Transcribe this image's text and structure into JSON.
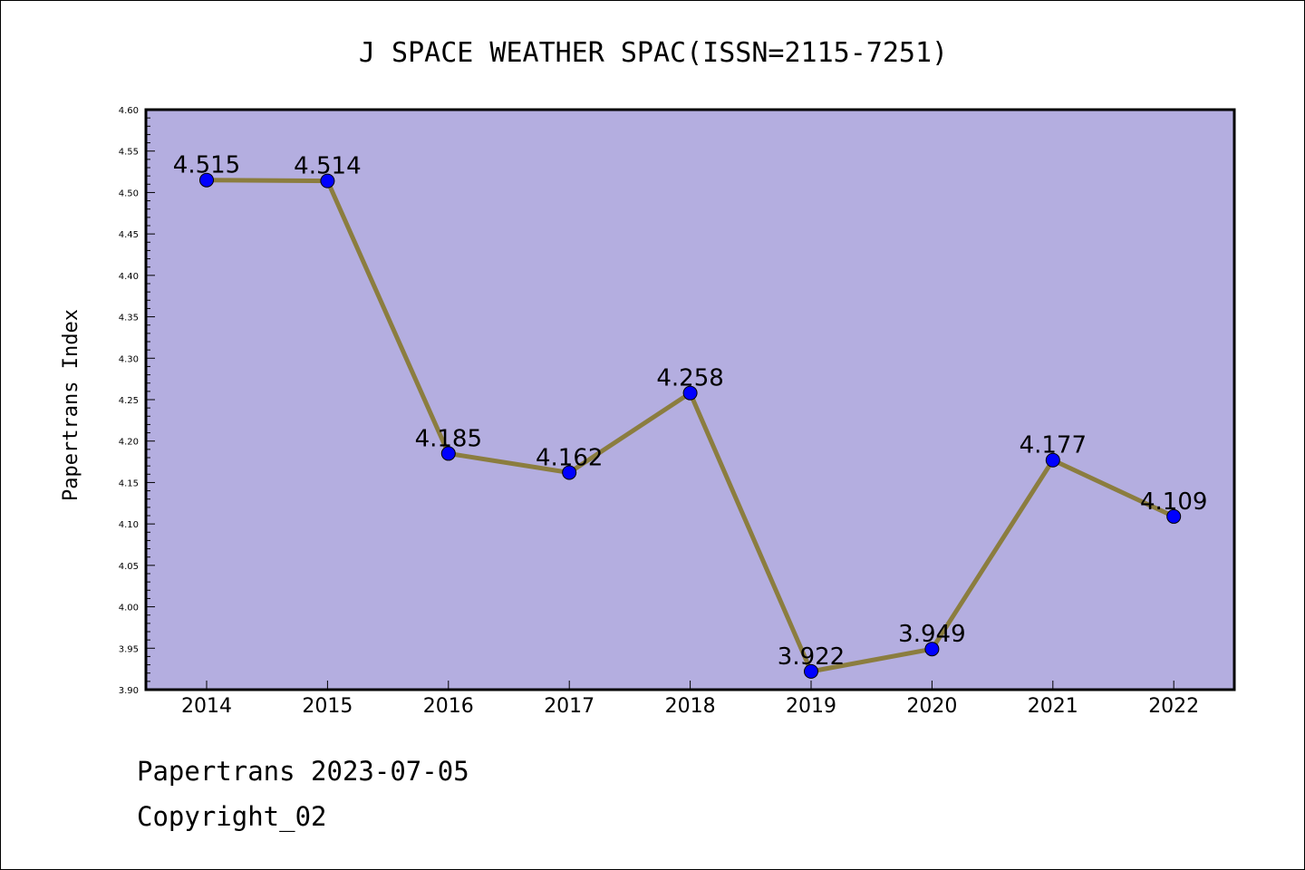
{
  "colors": {
    "plot_background": "#b4aee0",
    "line": "#8b7d3f",
    "marker": "#0000ff",
    "axis": "#000000"
  },
  "footer": {
    "line1": "Papertrans 2023-07-05",
    "line2": "Copyright_02"
  },
  "chart_data": {
    "type": "line",
    "title": "J SPACE WEATHER SPAC(ISSN=2115-7251)",
    "xlabel": "",
    "ylabel": "Papertrans Index",
    "categories": [
      "2014",
      "2015",
      "2016",
      "2017",
      "2018",
      "2019",
      "2020",
      "2021",
      "2022"
    ],
    "values": [
      4.515,
      4.514,
      4.185,
      4.162,
      4.258,
      3.922,
      3.949,
      4.177,
      4.109
    ],
    "data_labels": [
      "4.515",
      "4.514",
      "4.185",
      "4.162",
      "4.258",
      "3.922",
      "3.949",
      "4.177",
      "4.109"
    ],
    "ylim": [
      3.9,
      4.6
    ],
    "yticks": [
      "3.90",
      "3.95",
      "4.00",
      "4.05",
      "4.10",
      "4.15",
      "4.20",
      "4.25",
      "4.30",
      "4.35",
      "4.40",
      "4.45",
      "4.50",
      "4.55",
      "4.60"
    ],
    "grid": false,
    "legend": "none"
  }
}
